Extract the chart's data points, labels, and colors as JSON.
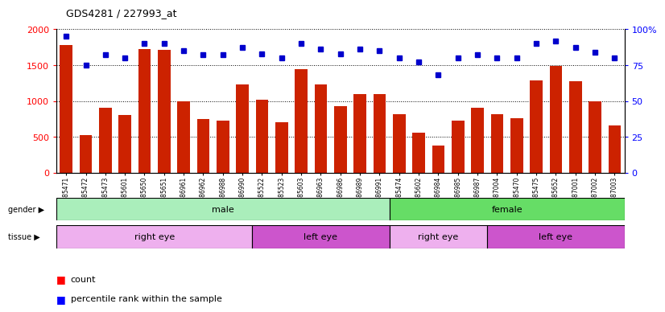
{
  "title": "GDS4281 / 227993_at",
  "samples": [
    "GSM685471",
    "GSM685472",
    "GSM685473",
    "GSM685601",
    "GSM685650",
    "GSM685651",
    "GSM686961",
    "GSM686962",
    "GSM686988",
    "GSM686990",
    "GSM685522",
    "GSM685523",
    "GSM685603",
    "GSM686963",
    "GSM686986",
    "GSM686989",
    "GSM686991",
    "GSM685474",
    "GSM685602",
    "GSM686984",
    "GSM686985",
    "GSM686987",
    "GSM687004",
    "GSM685470",
    "GSM685475",
    "GSM685652",
    "GSM687001",
    "GSM687002",
    "GSM687003"
  ],
  "counts": [
    1780,
    530,
    910,
    800,
    1720,
    1710,
    1000,
    750,
    730,
    1230,
    1020,
    700,
    1440,
    1230,
    930,
    1100,
    1100,
    820,
    560,
    380,
    730,
    900,
    820,
    760,
    1290,
    1490,
    1280,
    1000,
    660
  ],
  "percentiles": [
    95,
    75,
    82,
    80,
    90,
    90,
    85,
    82,
    82,
    87,
    83,
    80,
    90,
    86,
    83,
    86,
    85,
    80,
    77,
    68,
    80,
    82,
    80,
    80,
    90,
    92,
    87,
    84,
    80
  ],
  "gender_groups": [
    {
      "label": "male",
      "start": 0,
      "end": 17,
      "color": "#AAEEBB"
    },
    {
      "label": "female",
      "start": 17,
      "end": 29,
      "color": "#66DD66"
    }
  ],
  "tissue_groups": [
    {
      "label": "right eye",
      "start": 0,
      "end": 10,
      "color": "#EEB0EE"
    },
    {
      "label": "left eye",
      "start": 10,
      "end": 17,
      "color": "#CC55CC"
    },
    {
      "label": "right eye",
      "start": 17,
      "end": 22,
      "color": "#EEB0EE"
    },
    {
      "label": "left eye",
      "start": 22,
      "end": 29,
      "color": "#CC55CC"
    }
  ],
  "bar_color": "#CC2200",
  "dot_color": "#0000CC",
  "ylim_left": [
    0,
    2000
  ],
  "ylim_right": [
    0,
    100
  ],
  "yticks_left": [
    0,
    500,
    1000,
    1500,
    2000
  ],
  "ytick_labels_right": [
    "0",
    "25",
    "50",
    "75",
    "100%"
  ]
}
